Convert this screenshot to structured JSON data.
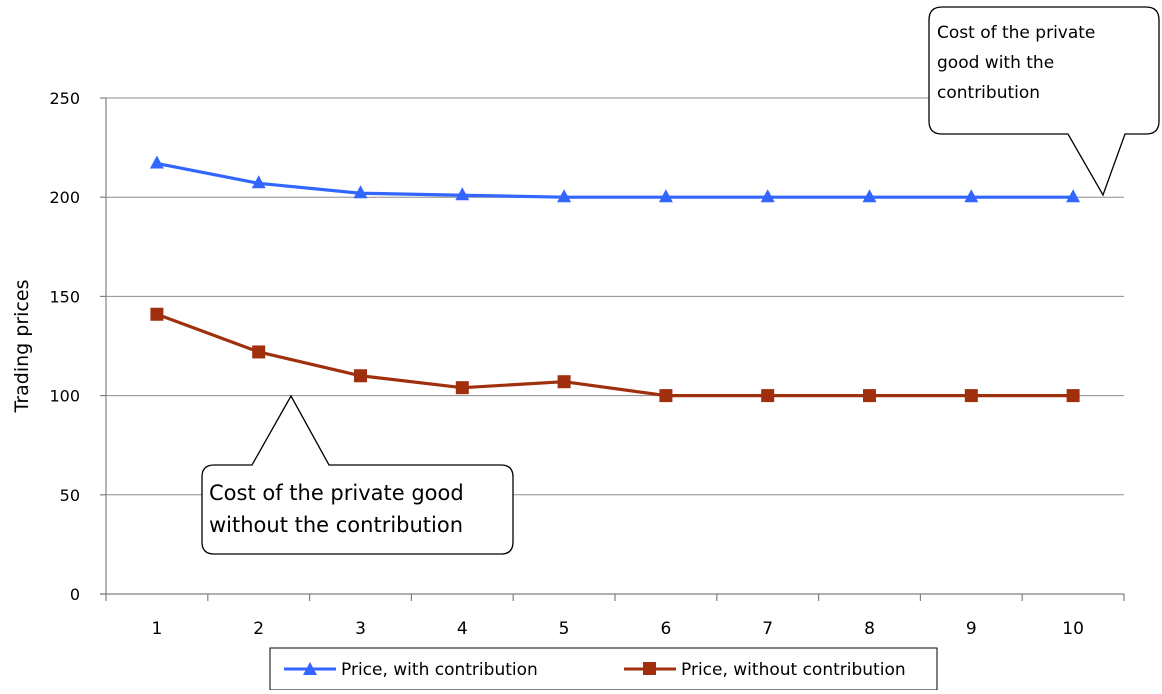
{
  "chart_data": {
    "type": "line",
    "title": "",
    "xlabel": "",
    "ylabel": "Trading prices",
    "categories": [
      "1",
      "2",
      "3",
      "4",
      "5",
      "6",
      "7",
      "8",
      "9",
      "10"
    ],
    "y_ticks": [
      "0",
      "50",
      "100",
      "150",
      "200",
      "250"
    ],
    "ylim": [
      0,
      250
    ],
    "grid": true,
    "legend_position": "bottom",
    "series": [
      {
        "name": "Price, with contribution",
        "marker": "triangle",
        "color": "#3366FF",
        "values": [
          217,
          207,
          202,
          201,
          200,
          200,
          200,
          200,
          200,
          200
        ]
      },
      {
        "name": "Price, without contribution",
        "marker": "square",
        "color": "#A0300D",
        "values": [
          141,
          122,
          110,
          104,
          107,
          100,
          100,
          100,
          100,
          100
        ]
      }
    ],
    "annotations": [
      {
        "id": "with",
        "lines": [
          "Cost of the private",
          "good with the",
          "contribution"
        ]
      },
      {
        "id": "without",
        "lines": [
          "Cost of the private good",
          "without the contribution"
        ]
      }
    ]
  }
}
